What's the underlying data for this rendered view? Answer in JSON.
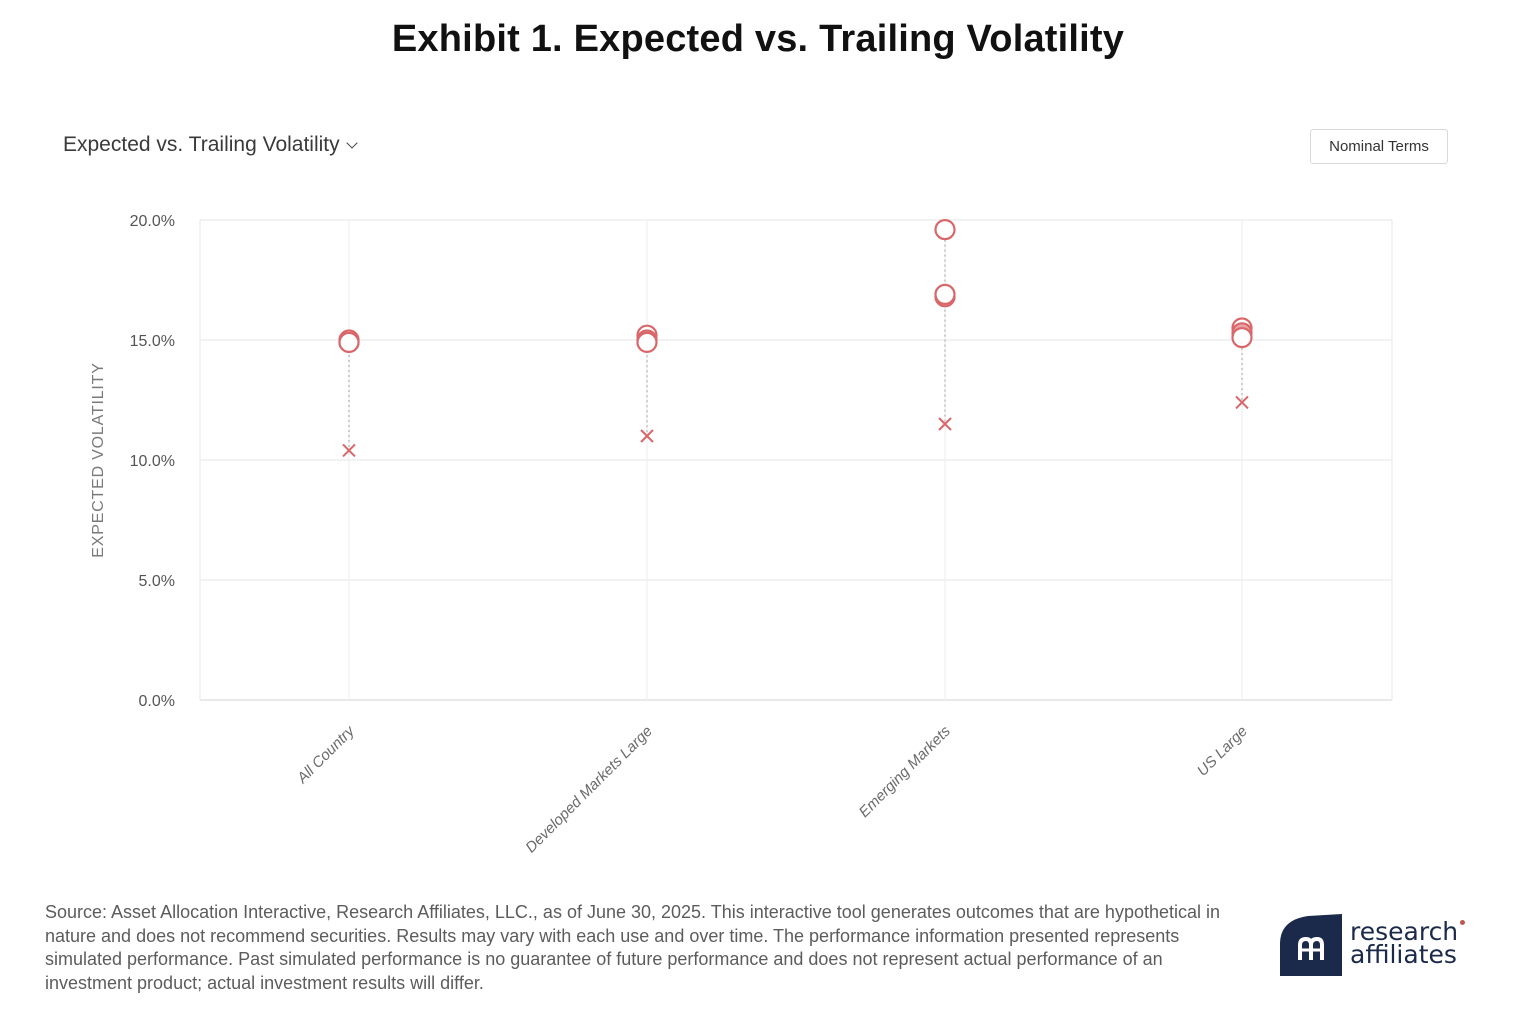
{
  "exhibit_title": "Exhibit 1. Expected vs. Trailing Volatility",
  "chart_selector": {
    "label": "Expected vs. Trailing Volatility",
    "icon": "chevron-down-icon"
  },
  "toggle_button": {
    "label": "Nominal Terms"
  },
  "chart_data": {
    "type": "scatter",
    "title": "",
    "ylabel": "EXPECTED VOLATILITY",
    "xlabel": "",
    "ylim": [
      0,
      20
    ],
    "yticks": [
      "0.0%",
      "5.0%",
      "10.0%",
      "15.0%",
      "20.0%"
    ],
    "ytick_values": [
      0,
      5,
      10,
      15,
      20
    ],
    "categories": [
      "All Country",
      "Developed Markets Large",
      "Emerging Markets",
      "US Large"
    ],
    "series": [
      {
        "marker": "open-circle",
        "values": [
          15.0,
          15.2,
          19.6,
          15.5
        ]
      },
      {
        "marker": "filled-circle",
        "values": [
          14.9,
          15.0,
          16.8,
          15.3
        ]
      },
      {
        "marker": "open-circle",
        "values": [
          14.9,
          14.9,
          16.9,
          15.1
        ]
      },
      {
        "marker": "cross",
        "values": [
          10.4,
          11.0,
          11.5,
          12.4
        ]
      }
    ],
    "grid": true,
    "colors": {
      "marker": "#d9676a",
      "marker_fill": "#eaa4a6",
      "grid": "#ebebeb",
      "connector": "#b5b5b5"
    }
  },
  "source_note": "Source: Asset Allocation Interactive, Research Affiliates, LLC., as of June 30, 2025. This interactive tool generates outcomes that are hypothetical in nature and does not recommend securities. Results may vary with each use and over time. The performance information presented represents simulated performance. Past simulated performance is no guarantee of future performance and does not represent actual performance of an investment product; actual investment results will differ.",
  "logo": {
    "line1": "research",
    "line2": "affiliates",
    "icon": "research-affiliates-logo-icon",
    "color": "#1b2a4a"
  }
}
